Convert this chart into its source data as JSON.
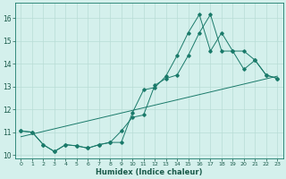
{
  "xlabel": "Humidex (Indice chaleur)",
  "bg_color": "#d4f0ec",
  "grid_color": "#b8dcd6",
  "line_color": "#1a7a6a",
  "xlim": [
    -0.5,
    23.5
  ],
  "ylim": [
    9.85,
    16.65
  ],
  "yticks": [
    10,
    11,
    12,
    13,
    14,
    15,
    16
  ],
  "xticks": [
    0,
    1,
    2,
    3,
    4,
    5,
    6,
    7,
    8,
    9,
    10,
    11,
    12,
    13,
    14,
    15,
    16,
    17,
    18,
    19,
    20,
    21,
    22,
    23
  ],
  "series1_x": [
    0,
    1,
    2,
    3,
    4,
    5,
    6,
    7,
    8,
    9,
    10,
    11,
    12,
    13,
    14,
    15,
    16,
    17,
    18,
    19,
    20,
    21,
    22,
    23
  ],
  "series1_y": [
    11.05,
    11.0,
    10.45,
    10.15,
    10.45,
    10.4,
    10.3,
    10.45,
    10.55,
    11.05,
    11.65,
    11.75,
    13.05,
    13.35,
    13.5,
    14.35,
    15.35,
    16.15,
    14.55,
    14.55,
    14.55,
    14.15,
    13.5,
    13.35
  ],
  "series2_x": [
    0,
    1,
    2,
    3,
    4,
    5,
    6,
    7,
    8,
    9,
    10,
    11,
    12,
    13,
    14,
    15,
    16,
    17,
    18,
    19,
    20,
    21,
    22,
    23
  ],
  "series2_y": [
    11.05,
    11.0,
    10.45,
    10.15,
    10.45,
    10.4,
    10.3,
    10.45,
    10.55,
    10.55,
    11.85,
    12.85,
    12.95,
    13.45,
    14.35,
    15.35,
    16.15,
    14.55,
    15.35,
    14.55,
    13.75,
    14.15,
    13.5,
    13.35
  ],
  "series3_x": [
    0,
    23
  ],
  "series3_y": [
    10.8,
    13.45
  ]
}
